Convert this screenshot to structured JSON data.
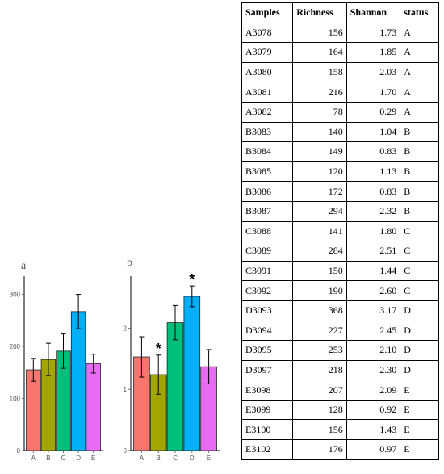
{
  "chart_data": [
    {
      "type": "bar",
      "panel_label": "a",
      "categories": [
        "A",
        "B",
        "C",
        "D",
        "E"
      ],
      "values": [
        155,
        175,
        191,
        267,
        167
      ],
      "errors": [
        22,
        31,
        33,
        33,
        18
      ],
      "colors": [
        "#f8766d",
        "#a3a500",
        "#00bf7d",
        "#00b0f6",
        "#e76bf3"
      ],
      "yticks": [
        0,
        100,
        200,
        300
      ],
      "ylim": [
        0,
        335
      ],
      "annotations": []
    },
    {
      "type": "bar",
      "panel_label": "b",
      "categories": [
        "A",
        "B",
        "C",
        "D",
        "E"
      ],
      "values": [
        1.53,
        1.24,
        2.09,
        2.52,
        1.37
      ],
      "errors": [
        0.33,
        0.32,
        0.28,
        0.17,
        0.28
      ],
      "colors": [
        "#f8766d",
        "#a3a500",
        "#00bf7d",
        "#00b0f6",
        "#e76bf3"
      ],
      "yticks": [
        0,
        1,
        2
      ],
      "ylim": [
        0,
        2.85
      ],
      "annotations": [
        {
          "category": "B",
          "text": "*"
        },
        {
          "category": "D",
          "text": "*"
        }
      ]
    }
  ],
  "table": {
    "headers": [
      "Samples",
      "Richness",
      "Shannon",
      "status"
    ],
    "rows": [
      [
        "A3078",
        "156",
        "1.73",
        "A"
      ],
      [
        "A3079",
        "164",
        "1.85",
        "A"
      ],
      [
        "A3080",
        "158",
        "2.03",
        "A"
      ],
      [
        "A3081",
        "216",
        "1.70",
        "A"
      ],
      [
        "A3082",
        "78",
        "0.29",
        "A"
      ],
      [
        "B3083",
        "140",
        "1.04",
        "B"
      ],
      [
        "B3084",
        "149",
        "0.83",
        "B"
      ],
      [
        "B3085",
        "120",
        "1.13",
        "B"
      ],
      [
        "B3086",
        "172",
        "0.83",
        "B"
      ],
      [
        "B3087",
        "294",
        "2.32",
        "B"
      ],
      [
        "C3088",
        "141",
        "1.80",
        "C"
      ],
      [
        "C3089",
        "284",
        "2.51",
        "C"
      ],
      [
        "C3091",
        "150",
        "1.44",
        "C"
      ],
      [
        "C3092",
        "190",
        "2.60",
        "C"
      ],
      [
        "D3093",
        "368",
        "3.17",
        "D"
      ],
      [
        "D3094",
        "227",
        "2.45",
        "D"
      ],
      [
        "D3095",
        "253",
        "2.10",
        "D"
      ],
      [
        "D3097",
        "218",
        "2.30",
        "D"
      ],
      [
        "E3098",
        "207",
        "2.09",
        "E"
      ],
      [
        "E3099",
        "128",
        "0.92",
        "E"
      ],
      [
        "E3100",
        "156",
        "1.43",
        "E"
      ],
      [
        "E3102",
        "176",
        "0.97",
        "E"
      ]
    ]
  }
}
